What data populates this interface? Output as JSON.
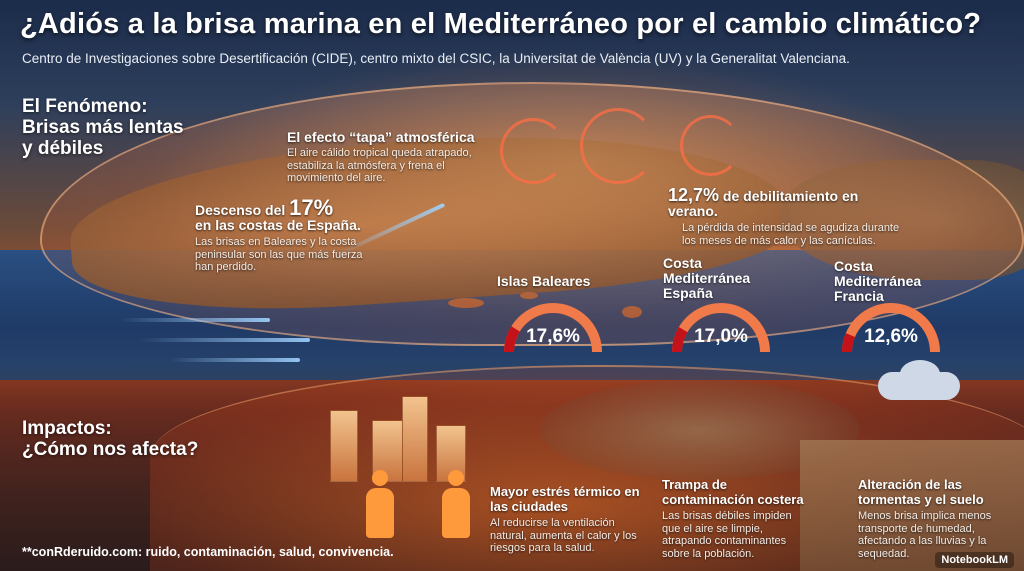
{
  "title": "¿Adiós a la brisa marina en el Mediterráneo por el cambio climático?",
  "subtitle": "Centro de Investigaciones sobre Desertificación (CIDE), centro mixto del CSIC, la Universitat de València (UV) y la Generalitat Valenciana.",
  "fenomeno": {
    "heading_line1": "El Fenómeno:",
    "heading_line2": "Brisas más lentas",
    "heading_line3": "y débiles"
  },
  "efecto_tapa": {
    "heading": "El efecto “tapa” atmosférica",
    "body": "El aire cálido tropical queda atrapado, estabiliza la atmósfera y frena el movimiento del aire."
  },
  "descenso": {
    "prefix": "Descenso del ",
    "value": "17%",
    "suffix": "en las costas de España.",
    "body": "Las brisas en Baleares y la costa peninsular son las que más fuerza han perdido."
  },
  "debilitamiento": {
    "value": "12,7%",
    "suffix": " de debilitamiento en verano.",
    "body": "La pérdida de intensidad se agudiza durante los meses de más calor y las canículas."
  },
  "gauges": [
    {
      "title": "Islas Baleares",
      "label": "17,6%",
      "value": 17.6
    },
    {
      "title": "Costa Mediterránea España",
      "label": "17,0%",
      "value": 17.0
    },
    {
      "title": "Costa Mediterránea Francia",
      "label": "12,6%",
      "value": 12.6
    }
  ],
  "impactos": {
    "heading_line1": "Impactos:",
    "heading_line2": "¿Cómo nos afecta?"
  },
  "impacts": [
    {
      "heading": "Mayor estrés térmico en las ciudades",
      "body": "Al reducirse la ventilación natural, aumenta el calor y los riesgos para la salud."
    },
    {
      "heading": "Trampa de contaminación costera",
      "body": "Las brisas débiles impiden que el aire se limpie, atrapando contaminantes sobre la población."
    },
    {
      "heading": "Alteración de las tormentas y el suelo",
      "body": "Menos brisa implica menos transporte de humedad, afectando a las lluvias y la sequedad."
    }
  ],
  "footer": "**conRderuido.com: ruido, contaminación, salud, convivencia.",
  "brand": "NotebookLM",
  "colors": {
    "gauge_red": "#c4121a",
    "gauge_orange": "#f07a4a",
    "accent_orange": "#ff9a3c"
  }
}
